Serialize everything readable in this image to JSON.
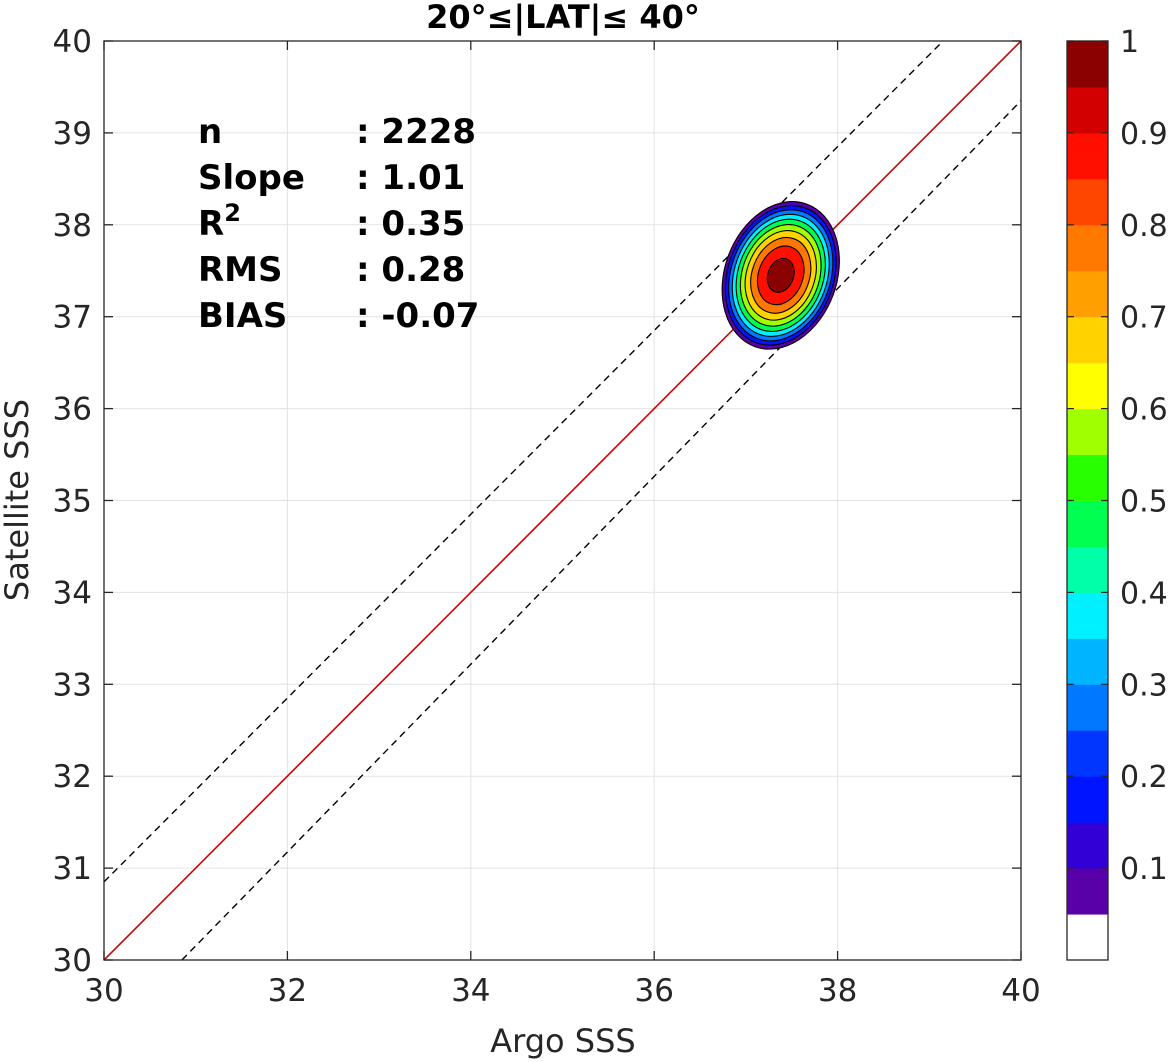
{
  "chart_data": {
    "type": "contour",
    "title": "20°≤|LAT|≤ 40°",
    "xlabel": "Argo SSS",
    "ylabel": "Satellite SSS",
    "xlim": [
      30,
      40
    ],
    "ylim": [
      30,
      40
    ],
    "xticks": [
      "30",
      "32",
      "34",
      "36",
      "38",
      "40"
    ],
    "yticks": [
      "30",
      "31",
      "32",
      "33",
      "34",
      "35",
      "36",
      "37",
      "38",
      "39",
      "40"
    ],
    "grid": true,
    "stats": [
      {
        "label": "n",
        "sep": ": ",
        "value": "2228"
      },
      {
        "label": "Slope",
        "sep": ": ",
        "value": "1.01"
      },
      {
        "label": "R",
        "sup": "2",
        "sep": ": ",
        "value": "0.35"
      },
      {
        "label": "RMS",
        "sep": ": ",
        "value": "0.28"
      },
      {
        "label": "BIAS",
        "sep": ": ",
        "value": "-0.07"
      }
    ],
    "lines": {
      "identity": {
        "x": [
          30,
          40
        ],
        "y": [
          30,
          40
        ],
        "color": "#000000"
      },
      "fit": {
        "x": [
          30,
          40
        ],
        "y": [
          30,
          40
        ],
        "color": "#e00000"
      },
      "upper_bound": {
        "x": [
          30,
          39.15
        ],
        "y": [
          30.85,
          40
        ],
        "color": "#000000",
        "dash": true
      },
      "lower_bound": {
        "x": [
          30.85,
          40
        ],
        "y": [
          30,
          39.35
        ],
        "color": "#000000",
        "dash": true
      }
    },
    "density": {
      "center": [
        37.38,
        37.45
      ],
      "levels": [
        0.05,
        0.15,
        0.25,
        0.35,
        0.45,
        0.55,
        0.65,
        0.75,
        0.85,
        0.95
      ],
      "outer_extent_x": [
        36.73,
        37.95
      ],
      "outer_extent_y": [
        36.55,
        38.2
      ]
    },
    "colorbar": {
      "ticks": [
        "0.1",
        "0.2",
        "0.3",
        "0.4",
        "0.5",
        "0.6",
        "0.7",
        "0.8",
        "0.9",
        "1"
      ],
      "colors": [
        "#ffffff",
        "#5a00a8",
        "#3200d6",
        "#0014ff",
        "#0036ff",
        "#0078ff",
        "#00b4ff",
        "#00f0ff",
        "#00ffa8",
        "#00ff50",
        "#28ff00",
        "#a0ff00",
        "#ffff00",
        "#ffd200",
        "#ffa000",
        "#ff7800",
        "#ff4600",
        "#ff0f00",
        "#d20000",
        "#8b0000"
      ]
    }
  }
}
